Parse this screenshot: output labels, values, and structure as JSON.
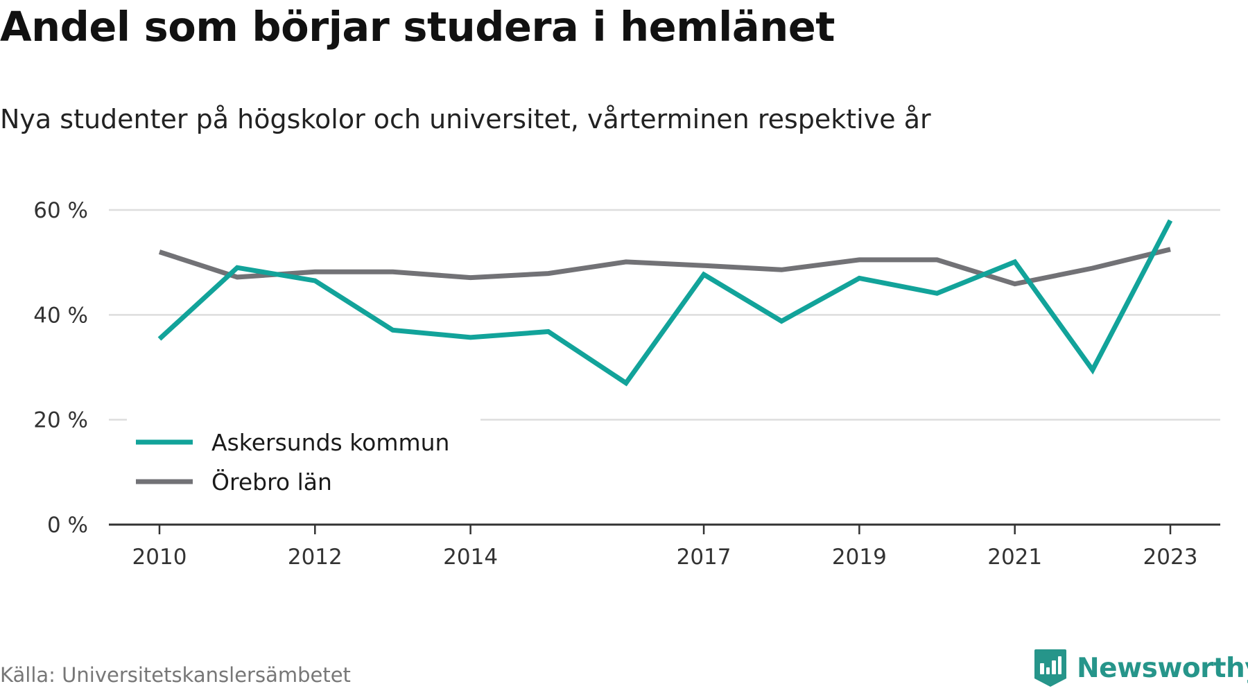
{
  "header": {
    "title": "Andel som börjar studera i hemlänet",
    "subtitle": "Nya studenter på högskolor och universitet, vårterminen respektive år"
  },
  "footer": {
    "source": "Källa: Universitetskanslersämbetet",
    "brand": "Newsworthy"
  },
  "chart_data": {
    "type": "line",
    "title": "Andel som börjar studera i hemlänet",
    "subtitle": "Nya studenter på högskolor och universitet, vårterminen respektive år",
    "xlabel": "",
    "ylabel": "",
    "x": [
      2010,
      2011,
      2012,
      2013,
      2014,
      2015,
      2016,
      2017,
      2018,
      2019,
      2020,
      2021,
      2022,
      2023
    ],
    "x_ticks": [
      "2010",
      "2012",
      "2014",
      "2017",
      "2019",
      "2021",
      "2023"
    ],
    "y_ticks": [
      "0 %",
      "20 %",
      "40 %",
      "60 %"
    ],
    "ylim": [
      0,
      60
    ],
    "grid": true,
    "legend_position": "bottom-left",
    "series": [
      {
        "name": "Askersunds kommun",
        "color": "#12a39a",
        "values": [
          35.4,
          49.0,
          46.5,
          37.1,
          35.7,
          36.8,
          27.0,
          47.7,
          38.8,
          47.0,
          44.1,
          50.1,
          29.5,
          58.0
        ]
      },
      {
        "name": "Örebro län",
        "color": "#727276",
        "values": [
          52.0,
          47.2,
          48.2,
          48.2,
          47.1,
          47.9,
          50.1,
          49.4,
          48.6,
          50.5,
          50.5,
          45.9,
          48.9,
          52.5
        ]
      }
    ]
  }
}
